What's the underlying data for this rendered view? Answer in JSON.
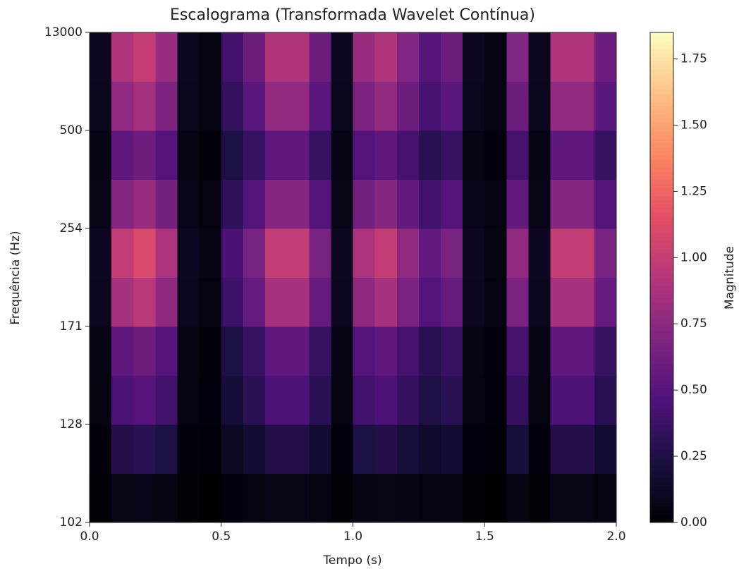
{
  "chart_data": {
    "type": "heatmap",
    "title": "Escalograma (Transformada Wavelet Contínua)",
    "x_label": "Tempo (s)",
    "y_label": "Frequência (Hz)",
    "colorbar_label": "Magnitude",
    "colormap": "magma",
    "xlim": [
      0,
      2
    ],
    "xticks": [
      {
        "value": 0,
        "label": "0.0"
      },
      0.5,
      {
        "value": 1,
        "label": "1.0"
      },
      1.5,
      {
        "value": 2,
        "label": "2.0"
      }
    ],
    "ylim": [
      0,
      5
    ],
    "yticks": [
      {
        "value": 0,
        "label": "102"
      },
      {
        "value": 1,
        "label": "128"
      },
      {
        "value": 2,
        "label": "171"
      },
      {
        "value": 3,
        "label": "254"
      },
      {
        "value": 4,
        "label": "500"
      },
      {
        "value": 5,
        "label": "13000"
      }
    ],
    "clim": [
      0,
      1.85
    ],
    "cticks": [
      {
        "value": 0,
        "label": "0.00"
      },
      0.25,
      {
        "value": 0.5,
        "label": "0.50"
      },
      0.75,
      {
        "value": 1,
        "label": "1.00"
      },
      1.25,
      {
        "value": 1.5,
        "label": "1.50"
      },
      1.75
    ],
    "values": [
      [
        0.01,
        0.07,
        0.08,
        0.06,
        0.01,
        0.0,
        0.03,
        0.05,
        0.07,
        0.07,
        0.05,
        0.01,
        0.06,
        0.07,
        0.06,
        0.04,
        0.05,
        0.01,
        0.0,
        0.06,
        0.01,
        0.07,
        0.07,
        0.05
      ],
      [
        0.03,
        0.27,
        0.3,
        0.24,
        0.03,
        0.02,
        0.12,
        0.18,
        0.27,
        0.27,
        0.18,
        0.03,
        0.24,
        0.27,
        0.21,
        0.15,
        0.18,
        0.03,
        0.02,
        0.21,
        0.03,
        0.27,
        0.27,
        0.18
      ],
      [
        0.05,
        0.45,
        0.5,
        0.4,
        0.05,
        0.03,
        0.2,
        0.3,
        0.45,
        0.45,
        0.3,
        0.05,
        0.4,
        0.45,
        0.35,
        0.25,
        0.3,
        0.05,
        0.03,
        0.35,
        0.05,
        0.45,
        0.45,
        0.3
      ],
      [
        0.06,
        0.54,
        0.6,
        0.48,
        0.06,
        0.03,
        0.24,
        0.36,
        0.54,
        0.54,
        0.36,
        0.06,
        0.48,
        0.54,
        0.42,
        0.3,
        0.36,
        0.06,
        0.03,
        0.42,
        0.06,
        0.54,
        0.54,
        0.36
      ],
      [
        0.1,
        0.86,
        0.95,
        0.76,
        0.1,
        0.05,
        0.38,
        0.57,
        0.86,
        0.86,
        0.57,
        0.1,
        0.76,
        0.86,
        0.67,
        0.48,
        0.57,
        0.1,
        0.05,
        0.67,
        0.1,
        0.86,
        0.86,
        0.57
      ],
      [
        0.11,
        0.99,
        1.1,
        0.88,
        0.11,
        0.06,
        0.44,
        0.66,
        0.99,
        0.99,
        0.66,
        0.11,
        0.88,
        0.99,
        0.77,
        0.55,
        0.66,
        0.11,
        0.06,
        0.77,
        0.11,
        0.99,
        0.99,
        0.66
      ],
      [
        0.08,
        0.72,
        0.8,
        0.64,
        0.08,
        0.04,
        0.32,
        0.48,
        0.72,
        0.72,
        0.48,
        0.08,
        0.64,
        0.72,
        0.56,
        0.4,
        0.48,
        0.08,
        0.04,
        0.56,
        0.08,
        0.72,
        0.72,
        0.48
      ],
      [
        0.06,
        0.54,
        0.6,
        0.48,
        0.06,
        0.03,
        0.24,
        0.36,
        0.54,
        0.54,
        0.36,
        0.06,
        0.48,
        0.54,
        0.42,
        0.3,
        0.36,
        0.06,
        0.03,
        0.42,
        0.06,
        0.54,
        0.54,
        0.36
      ],
      [
        0.09,
        0.77,
        0.85,
        0.68,
        0.09,
        0.04,
        0.34,
        0.51,
        0.77,
        0.77,
        0.51,
        0.09,
        0.68,
        0.77,
        0.6,
        0.43,
        0.51,
        0.09,
        0.04,
        0.6,
        0.09,
        0.77,
        0.77,
        0.51
      ],
      [
        0.1,
        0.9,
        1.0,
        0.8,
        0.1,
        0.05,
        0.4,
        0.6,
        0.9,
        0.9,
        0.6,
        0.1,
        0.8,
        0.9,
        0.7,
        0.5,
        0.6,
        0.1,
        0.05,
        0.7,
        0.1,
        0.9,
        0.9,
        0.6
      ]
    ]
  }
}
